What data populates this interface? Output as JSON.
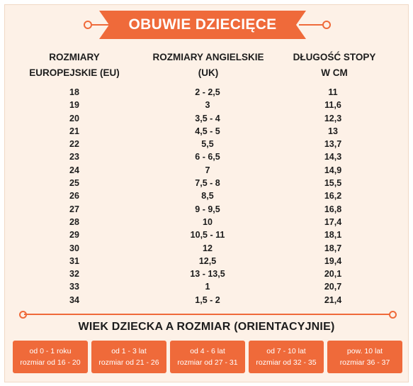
{
  "title": "OBUWIE DZIECIĘCE",
  "colors": {
    "accent": "#ef6a3a",
    "background": "#fdf1e7",
    "text": "#1c1c1c"
  },
  "headers": {
    "eu": [
      "ROZMIARY",
      "EUROPEJSKIE (EU)"
    ],
    "uk": [
      "ROZMIARY ANGIELSKIE",
      "(UK)"
    ],
    "foot": [
      "DŁUGOŚĆ STOPY",
      "W CM"
    ]
  },
  "rows": [
    {
      "eu": "18",
      "uk": "2 - 2,5",
      "cm": "11"
    },
    {
      "eu": "19",
      "uk": "3",
      "cm": "11,6"
    },
    {
      "eu": "20",
      "uk": "3,5 - 4",
      "cm": "12,3"
    },
    {
      "eu": "21",
      "uk": "4,5 - 5",
      "cm": "13"
    },
    {
      "eu": "22",
      "uk": "5,5",
      "cm": "13,7"
    },
    {
      "eu": "23",
      "uk": "6 - 6,5",
      "cm": "14,3"
    },
    {
      "eu": "24",
      "uk": "7",
      "cm": "14,9"
    },
    {
      "eu": "25",
      "uk": "7,5 - 8",
      "cm": "15,5"
    },
    {
      "eu": "26",
      "uk": "8,5",
      "cm": "16,2"
    },
    {
      "eu": "27",
      "uk": "9 - 9,5",
      "cm": "16,8"
    },
    {
      "eu": "28",
      "uk": "10",
      "cm": "17,4"
    },
    {
      "eu": "29",
      "uk": "10,5 - 11",
      "cm": "18,1"
    },
    {
      "eu": "30",
      "uk": "12",
      "cm": "18,7"
    },
    {
      "eu": "31",
      "uk": "12,5",
      "cm": "19,4"
    },
    {
      "eu": "32",
      "uk": "13 - 13,5",
      "cm": "20,1"
    },
    {
      "eu": "33",
      "uk": "1",
      "cm": "20,7"
    },
    {
      "eu": "34",
      "uk": "1,5 - 2",
      "cm": "21,4"
    }
  ],
  "age_title": "WIEK DZIECKA A ROZMIAR (ORIENTACYJNIE)",
  "age_boxes": [
    {
      "age": "od 0 - 1 roku",
      "size": "rozmiar od 16 - 20"
    },
    {
      "age": "od 1 - 3 lat",
      "size": "rozmiar od 21 - 26"
    },
    {
      "age": "od 4 - 6 lat",
      "size": "rozmiar od 27 - 31"
    },
    {
      "age": "od 7 - 10 lat",
      "size": "rozmiar od 32 - 35"
    },
    {
      "age": "pow. 10 lat",
      "size": "rozmiar 36 - 37"
    }
  ]
}
